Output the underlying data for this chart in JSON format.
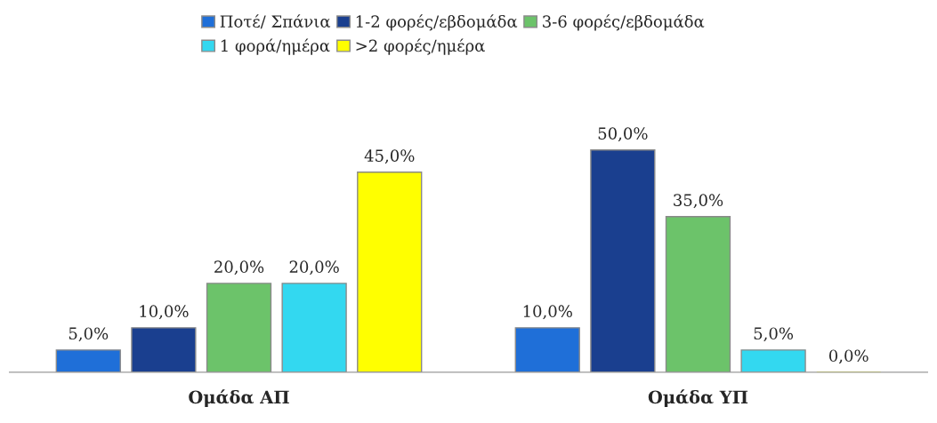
{
  "chart_data": {
    "type": "bar",
    "categories": [
      "Ομάδα ΑΠ",
      "Ομάδα ΥΠ"
    ],
    "series": [
      {
        "name": "Ποτέ/ Σπάνια",
        "color": "#1f6fd8",
        "values": [
          5.0,
          10.0
        ],
        "value_labels": [
          "5,0%",
          "10,0%"
        ]
      },
      {
        "name": "1-2 φορές/εβδομάδα",
        "color": "#1a3f8f",
        "values": [
          10.0,
          50.0
        ],
        "value_labels": [
          "10,0%",
          "50,0%"
        ]
      },
      {
        "name": "3-6 φορές/εβδομάδα",
        "color": "#6cc36a",
        "values": [
          20.0,
          35.0
        ],
        "value_labels": [
          "20,0%",
          "35,0%"
        ]
      },
      {
        "name": "1 φορά/ημέρα",
        "color": "#33d8f0",
        "values": [
          20.0,
          5.0
        ],
        "value_labels": [
          "20,0%",
          "5,0%"
        ]
      },
      {
        "name": ">2 φορές/ημέρα",
        "color": "#ffff00",
        "values": [
          45.0,
          0.0
        ],
        "value_labels": [
          "45,0%",
          "0,0%"
        ]
      }
    ],
    "legend": "top",
    "grid": false
  }
}
